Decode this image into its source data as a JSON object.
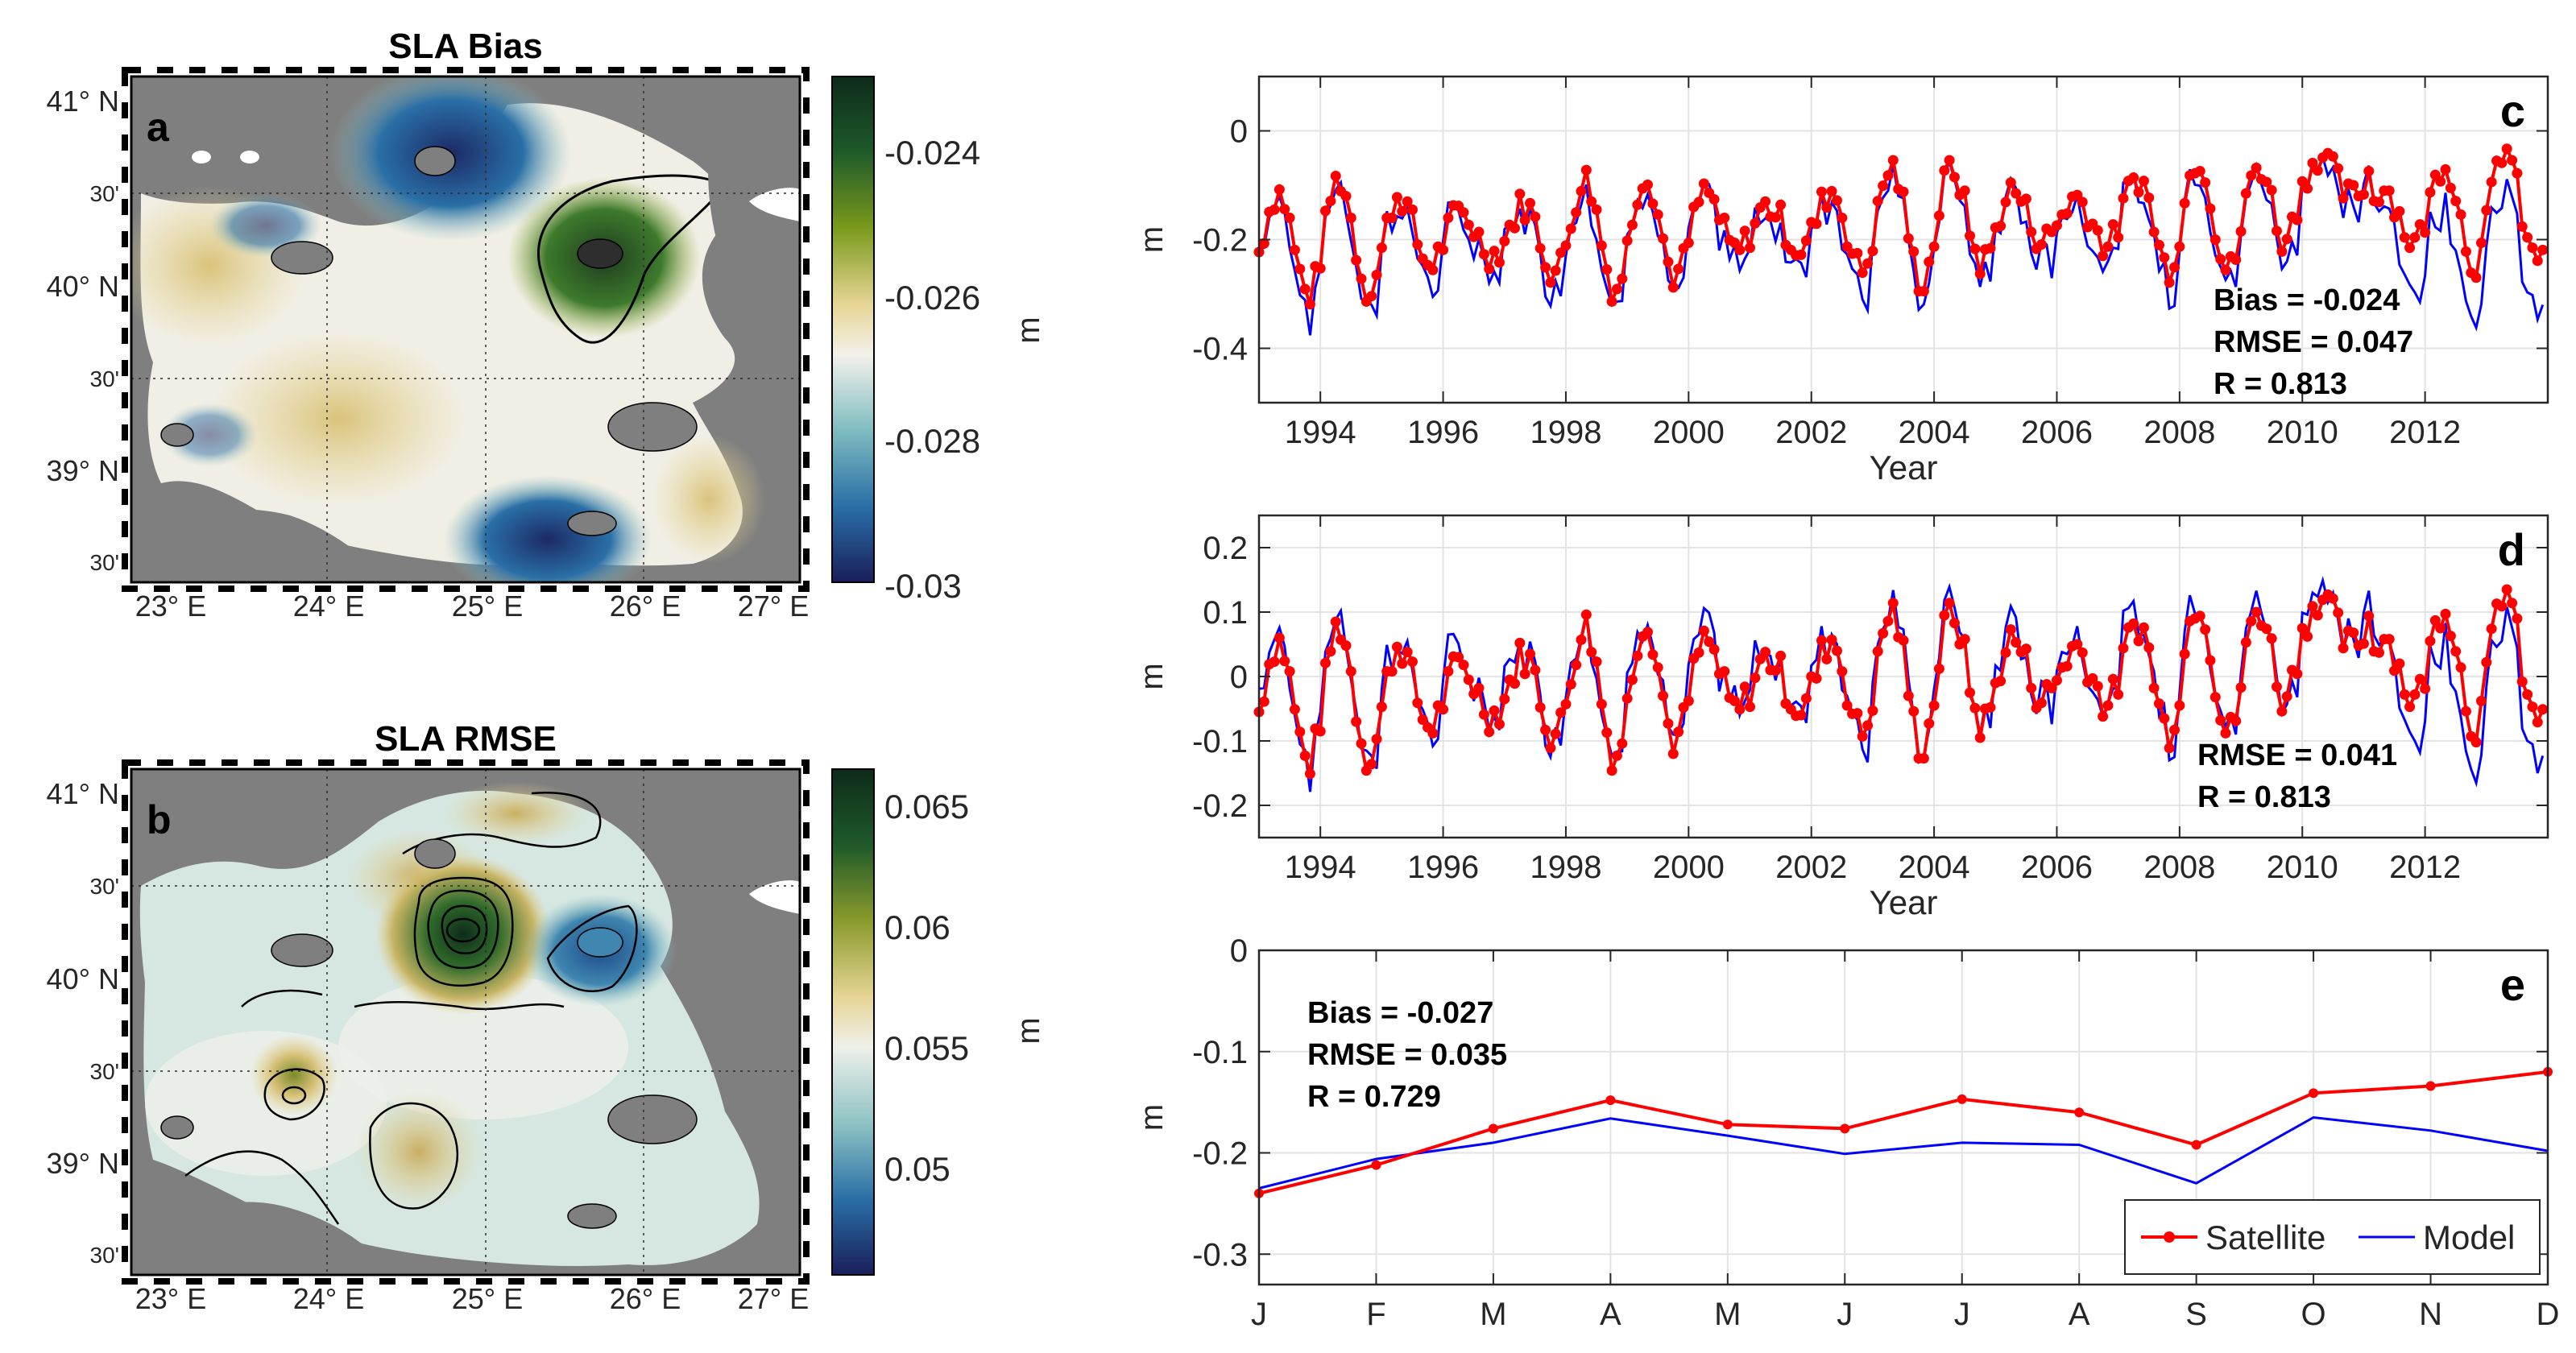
{
  "panel_a": {
    "title": "SLA Bias",
    "letter": "a",
    "lat_labels": [
      "41° N",
      "30'",
      "40° N",
      "30'",
      "39° N",
      "30'"
    ],
    "lon_labels": [
      "23° E",
      "24° E",
      "25° E",
      "26° E",
      "27° E"
    ],
    "colorbar_ticks": [
      "-0.024",
      "-0.026",
      "-0.028",
      "-0.03"
    ],
    "colorbar_unit": "m"
  },
  "panel_b": {
    "title": "SLA RMSE",
    "letter": "b",
    "lat_labels": [
      "41° N",
      "30'",
      "40° N",
      "30'",
      "39° N",
      "30'"
    ],
    "lon_labels": [
      "23° E",
      "24° E",
      "25° E",
      "26° E",
      "27° E"
    ],
    "colorbar_ticks": [
      "0.065",
      "0.06",
      "0.055",
      "0.05"
    ],
    "colorbar_unit": "m"
  },
  "colors": {
    "land": "#7f7f7f",
    "satellite": "#ff0000",
    "model": "#0000ff"
  },
  "chart_data": [
    {
      "id": "c",
      "type": "line",
      "letter": "c",
      "xlabel": "Year",
      "ylabel": "m",
      "xlim": [
        1993,
        2014
      ],
      "ylim": [
        -0.5,
        0.1
      ],
      "xticks": [
        1994,
        1996,
        1998,
        2000,
        2002,
        2004,
        2006,
        2008,
        2010,
        2012
      ],
      "yticks": [
        0,
        -0.2,
        -0.4
      ],
      "ytick_labels": [
        "0",
        "-0.2",
        "-0.4"
      ],
      "stats": [
        "Bias = -0.024",
        "RMSE = 0.047",
        "R =  0.813"
      ],
      "series": [
        {
          "name": "Satellite",
          "color": "#ff0000",
          "values": []
        },
        {
          "name": "Model",
          "color": "#0000ff",
          "values": []
        }
      ]
    },
    {
      "id": "d",
      "type": "line",
      "letter": "d",
      "xlabel": "Year",
      "ylabel": "m",
      "xlim": [
        1993,
        2014
      ],
      "ylim": [
        -0.25,
        0.25
      ],
      "xticks": [
        1994,
        1996,
        1998,
        2000,
        2002,
        2004,
        2006,
        2008,
        2010,
        2012
      ],
      "yticks": [
        0.2,
        0.1,
        0,
        -0.1,
        -0.2
      ],
      "ytick_labels": [
        "0.2",
        "0.1",
        "0",
        "-0.1",
        "-0.2"
      ],
      "stats": [
        "RMSE = 0.041",
        "R =  0.813"
      ],
      "series": [
        {
          "name": "Satellite",
          "color": "#ff0000",
          "values": []
        },
        {
          "name": "Model",
          "color": "#0000ff",
          "values": []
        }
      ]
    },
    {
      "id": "e",
      "type": "line",
      "letter": "e",
      "xlabel": "",
      "ylabel": "m",
      "categories": [
        "J",
        "F",
        "M",
        "A",
        "M",
        "J",
        "J",
        "A",
        "S",
        "O",
        "N",
        "D"
      ],
      "ylim": [
        -0.33,
        0
      ],
      "yticks": [
        0,
        -0.1,
        -0.2,
        -0.3
      ],
      "ytick_labels": [
        "0",
        "-0.1",
        "-0.2",
        "-0.3"
      ],
      "stats": [
        "Bias = -0.027",
        "RMSE = 0.035",
        "R =  0.729"
      ],
      "legend": [
        "Satellite",
        "Model"
      ],
      "legend_location": "bottom-right",
      "series": [
        {
          "name": "Satellite",
          "color": "#ff0000",
          "values": [
            -0.24,
            -0.212,
            -0.176,
            -0.148,
            -0.172,
            -0.176,
            -0.147,
            -0.16,
            -0.192,
            -0.141,
            -0.134,
            -0.12
          ]
        },
        {
          "name": "Model",
          "color": "#0000ff",
          "values": [
            -0.235,
            -0.206,
            -0.19,
            -0.166,
            -0.183,
            -0.201,
            -0.19,
            -0.192,
            -0.23,
            -0.165,
            -0.178,
            -0.198
          ]
        }
      ]
    }
  ]
}
